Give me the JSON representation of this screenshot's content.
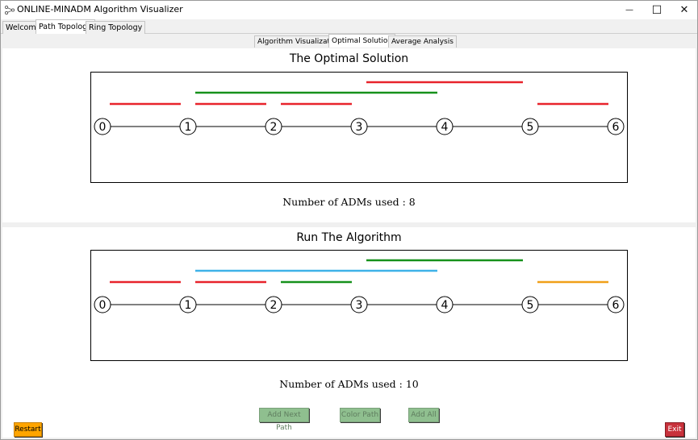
{
  "window": {
    "title": "ONLINE-MINADM Algorithm Visualizer",
    "minimize_glyph": "—",
    "maximize_glyph": "☐",
    "close_glyph": "✕"
  },
  "main_tabs": [
    {
      "label": "Welcome",
      "active": false
    },
    {
      "label": "Path Topology",
      "active": true
    },
    {
      "label": "Ring Topology",
      "active": false
    }
  ],
  "sub_tabs": [
    {
      "label": "Algorithm Visualization",
      "active": false
    },
    {
      "label": "Optimal Solution",
      "active": true
    },
    {
      "label": "Average Analysis",
      "active": false
    }
  ],
  "colors": {
    "red": "#e8232b",
    "green": "#16911b",
    "blue": "#3fb2e8",
    "orange": "#f0a018"
  },
  "optimal": {
    "title": "The Optimal Solution",
    "count_text": "Number of ADMs used : 8",
    "nodes": [
      "0",
      "1",
      "2",
      "3",
      "4",
      "5",
      "6"
    ],
    "paths": [
      {
        "from": 0,
        "to": 1,
        "level": 1,
        "color": "red"
      },
      {
        "from": 1,
        "to": 2,
        "level": 1,
        "color": "red"
      },
      {
        "from": 2,
        "to": 3,
        "level": 1,
        "color": "red"
      },
      {
        "from": 5,
        "to": 6,
        "level": 1,
        "color": "red"
      },
      {
        "from": 1,
        "to": 4,
        "level": 2,
        "color": "green"
      },
      {
        "from": 3,
        "to": 5,
        "level": 3,
        "color": "red"
      }
    ]
  },
  "algorithm": {
    "title": "Run The Algorithm",
    "count_text": "Number of ADMs used : 10",
    "nodes": [
      "0",
      "1",
      "2",
      "3",
      "4",
      "5",
      "6"
    ],
    "paths": [
      {
        "from": 0,
        "to": 1,
        "level": 1,
        "color": "red"
      },
      {
        "from": 1,
        "to": 2,
        "level": 1,
        "color": "red"
      },
      {
        "from": 2,
        "to": 3,
        "level": 1,
        "color": "green"
      },
      {
        "from": 5,
        "to": 6,
        "level": 1,
        "color": "orange"
      },
      {
        "from": 1,
        "to": 4,
        "level": 2,
        "color": "blue"
      },
      {
        "from": 3,
        "to": 5,
        "level": 3,
        "color": "green"
      }
    ]
  },
  "buttons": {
    "add_next_path": "Add Next Path",
    "color_path": "Color Path",
    "add_all": "Add All",
    "restart": "Restart",
    "exit": "Exit"
  }
}
